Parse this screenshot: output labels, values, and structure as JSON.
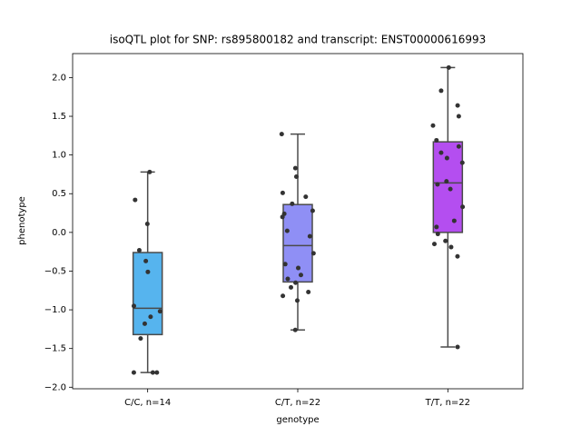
{
  "chart_data": {
    "type": "box",
    "title": "isoQTL plot for SNP: rs895800182 and transcript: ENST00000616993",
    "x_label": "genotype",
    "y_label": "phenotype",
    "categories": [
      "C/C, n=14",
      "C/T, n=22",
      "T/T, n=22"
    ],
    "colors": [
      "#56b4ee",
      "#8f8ff5",
      "#b44ef0"
    ],
    "boxes": [
      {
        "min": -1.81,
        "q1": -1.32,
        "median": -0.98,
        "q3": -0.26,
        "max": 0.78
      },
      {
        "min": -1.26,
        "q1": -0.64,
        "median": -0.17,
        "q3": 0.36,
        "max": 1.27
      },
      {
        "min": -1.48,
        "q1": 0.0,
        "median": 0.64,
        "q3": 1.17,
        "max": 2.13
      }
    ],
    "points": [
      [
        0.11,
        0.78,
        0.42,
        -0.23,
        -0.37,
        -0.51,
        -0.95,
        -1.02,
        -1.09,
        -1.18,
        -1.37,
        -1.81,
        -1.81,
        -1.81
      ],
      [
        1.27,
        0.83,
        0.72,
        0.51,
        0.46,
        0.37,
        0.28,
        0.24,
        0.2,
        0.02,
        -0.05,
        -0.27,
        -0.41,
        -0.46,
        -0.55,
        -0.6,
        -0.65,
        -0.71,
        -0.77,
        -0.82,
        -0.88,
        -1.26
      ],
      [
        2.13,
        1.83,
        1.64,
        1.5,
        1.38,
        1.19,
        1.11,
        1.03,
        0.96,
        0.9,
        0.66,
        0.62,
        0.56,
        0.33,
        0.15,
        0.07,
        -0.02,
        -0.11,
        -0.15,
        -0.19,
        -0.31,
        -1.48
      ]
    ],
    "point_color": "#333333",
    "ylim": [
      -2.02,
      2.31
    ],
    "yticks": [
      {
        "value": -2,
        "label": "−2.0"
      },
      {
        "value": -1.5,
        "label": "−1.5"
      },
      {
        "value": -1,
        "label": "−1.0"
      },
      {
        "value": -0.5,
        "label": "−0.5"
      },
      {
        "value": 0,
        "label": "0.0"
      },
      {
        "value": 0.5,
        "label": "0.5"
      },
      {
        "value": 1,
        "label": "1.0"
      },
      {
        "value": 1.5,
        "label": "1.5"
      },
      {
        "value": 2,
        "label": "2.0"
      }
    ]
  }
}
